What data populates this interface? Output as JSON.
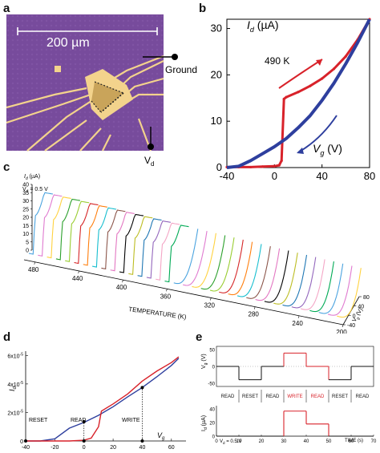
{
  "chart_data": [
    {
      "panel": "a",
      "type": "other",
      "scale_bar_label": "200 µm",
      "terminal_labels": [
        "Ground",
        "V_d"
      ],
      "colors": {
        "substrate": "#7b4fa0",
        "electrode": "#f3d38c",
        "device": "#c9a45a"
      }
    },
    {
      "panel": "b",
      "type": "line",
      "ylabel": "I_d (µA)",
      "xlabel": "V_g (V)",
      "annotation": "490 K",
      "xlim": [
        -40,
        80
      ],
      "ylim": [
        0,
        32
      ],
      "xticks": [
        -40,
        0,
        40,
        80
      ],
      "yticks": [
        0,
        10,
        20,
        30
      ],
      "series": [
        {
          "color": "#d8222a",
          "x": [
            -40,
            -30,
            -20,
            -10,
            0,
            4,
            6,
            8,
            10,
            20,
            30,
            40,
            50,
            60,
            70,
            80
          ],
          "y": [
            0.1,
            0.1,
            0.1,
            0.2,
            0.3,
            0.5,
            1.5,
            14.8,
            15.2,
            16.3,
            17.6,
            19.2,
            21.3,
            24.0,
            27.6,
            32.0
          ]
        },
        {
          "color": "#2e3f9e",
          "x": [
            -40,
            -30,
            -20,
            -10,
            0,
            10,
            20,
            30,
            40,
            50,
            60,
            70,
            80
          ],
          "y": [
            0.0,
            0.3,
            1.5,
            3.0,
            4.5,
            6.3,
            8.6,
            11.2,
            14.5,
            18.2,
            22.4,
            27.0,
            32.0
          ]
        }
      ]
    },
    {
      "panel": "c",
      "type": "line",
      "ylabel": "I_d (µA)",
      "xlabel": "TEMPERATURE (K)",
      "zlabel": "V_g (V)",
      "annotation": "V_d = 0.5 V",
      "yticks": [
        0,
        5,
        10,
        15,
        20,
        25,
        30,
        35,
        40
      ],
      "xticks": [
        480,
        440,
        400,
        360,
        320,
        280,
        240,
        200
      ],
      "zticks": [
        80,
        40,
        0,
        -40
      ],
      "colors": [
        "#4aa3df",
        "#e07bd0",
        "#ffd23f",
        "#2ca02c",
        "#9acd32",
        "#d62728",
        "#ff7f0e",
        "#17becf",
        "#8c564b",
        "#e377c2",
        "#000000",
        "#bcbd22",
        "#1f77b4",
        "#9467bd",
        "#f4a6c6",
        "#00aa55"
      ]
    },
    {
      "panel": "d",
      "type": "line",
      "ylabel": "I_d",
      "xlabel": "V_g",
      "yticks": [
        "6x10",
        "4x10",
        "2x10",
        "0"
      ],
      "ytick_exp": "-5",
      "xticks": [
        -40,
        -20,
        0,
        20,
        40,
        60
      ],
      "annotations": [
        "RESET",
        "READ",
        "WRITE"
      ],
      "points": [
        {
          "x": -40,
          "y": 0
        },
        {
          "x": 0,
          "y": 0
        },
        {
          "x": 0,
          "y": 1.35e-05
        },
        {
          "x": 40,
          "y": 3.75e-05
        },
        {
          "x": 40,
          "y": 0
        }
      ],
      "series": [
        {
          "color": "#2e3f9e",
          "x": [
            -40,
            -30,
            -20,
            -10,
            0,
            10,
            20,
            30,
            40,
            50,
            60,
            65
          ],
          "y": [
            0,
            0.0,
            1.5e-06,
            9e-06,
            1.3e-05,
            1.8e-05,
            2.4e-05,
            3.1e-05,
            3.75e-05,
            4.5e-05,
            5.3e-05,
            5.8e-05
          ]
        },
        {
          "color": "#d8222a",
          "x": [
            -40,
            -10,
            0,
            5,
            10,
            12,
            20,
            30,
            40,
            50,
            60,
            65
          ],
          "y": [
            0,
            0,
            5e-07,
            2e-06,
            1e-05,
            2.1e-05,
            2.6e-05,
            3.3e-05,
            4.2e-05,
            4.9e-05,
            5.5e-05,
            5.9e-05
          ]
        }
      ]
    },
    {
      "panel": "e",
      "type": "line",
      "top": {
        "ylabel": "V_g (V)",
        "yticks": [
          50,
          0,
          -50
        ],
        "segments": [
          "READ",
          "RESET",
          "READ",
          "WRITE",
          "READ",
          "RESET",
          "READ"
        ],
        "segment_colors": [
          "#111111",
          "#111111",
          "#111111",
          "#d8222a",
          "#d8222a",
          "#111111",
          "#111111"
        ],
        "x": [
          0,
          10,
          10,
          20,
          20,
          30,
          30,
          40,
          40,
          50,
          50,
          60,
          60,
          70
        ],
        "y": [
          0,
          0,
          -40,
          -40,
          0,
          0,
          40,
          40,
          0,
          0,
          -40,
          -40,
          0,
          0
        ]
      },
      "bottom": {
        "ylabel": "I_d (µA)",
        "annotation": "V_d = 0.5 V",
        "xlabel": "TIME (s)",
        "xticks": [
          0,
          10,
          20,
          30,
          40,
          50,
          60,
          70
        ],
        "yticks": [
          40,
          20,
          0
        ],
        "x": [
          0,
          30,
          30,
          40,
          40,
          50,
          50,
          70
        ],
        "y": [
          0,
          0,
          37,
          37,
          18,
          18,
          0,
          0
        ]
      }
    }
  ]
}
